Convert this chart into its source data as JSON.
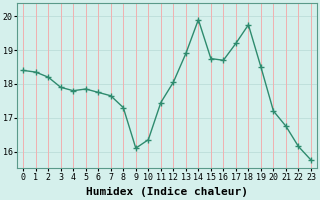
{
  "x": [
    0,
    1,
    2,
    3,
    4,
    5,
    6,
    7,
    8,
    9,
    10,
    11,
    12,
    13,
    14,
    15,
    16,
    17,
    18,
    19,
    20,
    21,
    22,
    23
  ],
  "y": [
    18.4,
    18.35,
    18.2,
    17.9,
    17.8,
    17.85,
    17.75,
    17.65,
    17.3,
    16.1,
    16.35,
    17.45,
    18.05,
    18.9,
    19.9,
    18.75,
    18.7,
    19.2,
    19.75,
    18.5,
    17.2,
    16.75,
    16.15,
    15.75
  ],
  "line_color": "#2e8b6e",
  "marker": "+",
  "marker_size": 4,
  "marker_lw": 1.0,
  "line_width": 1.0,
  "bg_color": "#d5f0ec",
  "grid_color_h": "#c0e0dc",
  "grid_color_v": "#f0b0b0",
  "xlabel": "Humidex (Indice chaleur)",
  "ylim": [
    15.5,
    20.4
  ],
  "xlim": [
    -0.5,
    23.5
  ],
  "yticks": [
    16,
    17,
    18,
    19,
    20
  ],
  "xticks": [
    0,
    1,
    2,
    3,
    4,
    5,
    6,
    7,
    8,
    9,
    10,
    11,
    12,
    13,
    14,
    15,
    16,
    17,
    18,
    19,
    20,
    21,
    22,
    23
  ],
  "tick_fontsize": 6,
  "xlabel_fontsize": 8,
  "ylabel_fontsize": 7
}
